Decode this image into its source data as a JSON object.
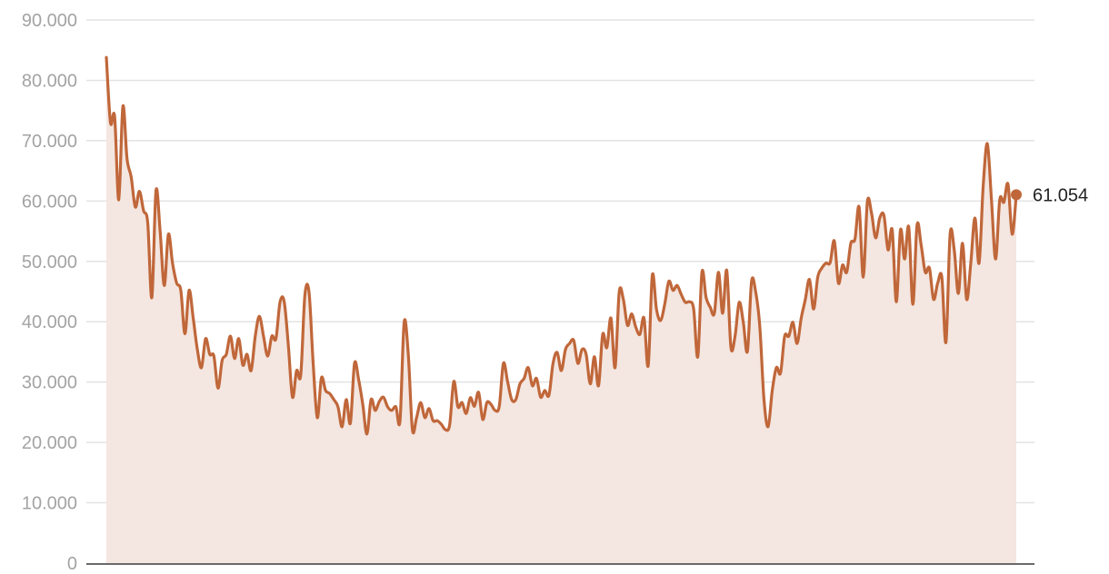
{
  "chart_data": {
    "type": "area",
    "title": "",
    "xlabel": "",
    "ylabel": "",
    "ylim": [
      0,
      90
    ],
    "yticks": [
      0,
      10,
      20,
      30,
      40,
      50,
      60,
      70,
      80,
      90
    ],
    "ytick_labels": [
      "0",
      "10.000",
      "20.000",
      "30.000",
      "40.000",
      "50.000",
      "60.000",
      "70.000",
      "80.000",
      "90.000"
    ],
    "grid": true,
    "legend": "none",
    "last_value_label": "61.054",
    "colors": {
      "line": "#c0673a",
      "fill": "#f4e6e0",
      "grid": "#e3e3e3",
      "axis": "#111111"
    },
    "series": [
      {
        "values": [
          83.8,
          73,
          74,
          60.2,
          75.7,
          67,
          64,
          59,
          61.6,
          58.4,
          56.4,
          44,
          61.7,
          55,
          46,
          54.5,
          49.7,
          46.4,
          45.2,
          38,
          45.2,
          40.6,
          35.4,
          32.4,
          37.2,
          34.6,
          34.3,
          29,
          33.6,
          34.6,
          37.6,
          33.9,
          37.2,
          32.8,
          34.6,
          31.9,
          37.6,
          40.9,
          37.6,
          34.3,
          37.6,
          37.2,
          43.3,
          43.3,
          36.1,
          27.5,
          31.9,
          31.2,
          44.4,
          44.9,
          33.1,
          24.1,
          30.7,
          28.6,
          28.1,
          27.1,
          25.9,
          22.6,
          27.1,
          23.2,
          33.1,
          30.4,
          26.3,
          21.4,
          27.1,
          25.3,
          26.8,
          27.5,
          25.9,
          25.3,
          25.9,
          23.6,
          39.9,
          34.6,
          22.1,
          24.1,
          26.6,
          24.1,
          25.6,
          23.6,
          23.6,
          23,
          22.1,
          22.9,
          30.1,
          25.9,
          26.6,
          24.8,
          27.4,
          26,
          28.3,
          23.8,
          26.6,
          26.3,
          25.3,
          26,
          33.1,
          30.1,
          27.1,
          27.1,
          29.7,
          30.6,
          32.4,
          29.4,
          30.6,
          27.5,
          28.6,
          27.8,
          33.1,
          34.9,
          31.9,
          35.4,
          36.4,
          36.9,
          33.1,
          35.4,
          34.6,
          29.7,
          34.2,
          29.4,
          37.9,
          35.7,
          40.6,
          32.4,
          44.9,
          43.7,
          39.4,
          41.3,
          39.1,
          37.9,
          40.6,
          32.7,
          47.7,
          42.1,
          40.2,
          42.9,
          46.7,
          45.2,
          46,
          44.5,
          43.2,
          43.3,
          42.1,
          34.2,
          48.2,
          44,
          42.4,
          41.4,
          48.2,
          41.4,
          48.5,
          35.8,
          37.6,
          43.2,
          39.9,
          35.1,
          46.7,
          44.9,
          39.1,
          27.1,
          22.6,
          28.6,
          32.4,
          31.5,
          37.6,
          37.6,
          39.9,
          36.4,
          40.6,
          43.7,
          47,
          42.1,
          47.4,
          48.9,
          49.7,
          49.8,
          53.4,
          46.4,
          49.4,
          48.2,
          53,
          53.7,
          59,
          47.4,
          59.9,
          58,
          53.9,
          57.2,
          57.6,
          51.9,
          55.2,
          43.3,
          55.2,
          50.4,
          55.7,
          42.9,
          56,
          52.7,
          48.2,
          48.9,
          43.7,
          46.4,
          47.4,
          36.6,
          54.5,
          51.9,
          44.7,
          53,
          43.7,
          49.7,
          57.2,
          49.7,
          62.5,
          69.5,
          60.2,
          50.4,
          60.2,
          59.8,
          62.8,
          54.5,
          61.054
        ]
      }
    ]
  }
}
